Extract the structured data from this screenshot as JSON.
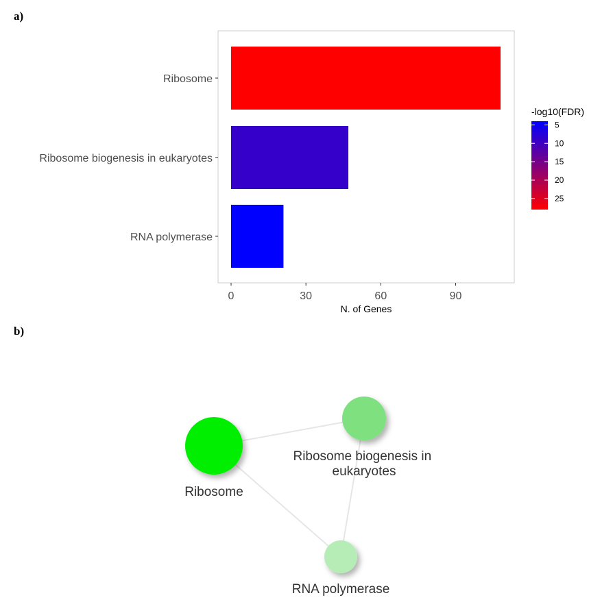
{
  "panels": {
    "a_label": "a)",
    "b_label": "b)"
  },
  "chart_data": [
    {
      "type": "bar",
      "orientation": "horizontal",
      "categories": [
        "Ribosome",
        "Ribosome biogenesis in eukaryotes",
        "RNA polymerase"
      ],
      "values": [
        108,
        47,
        21
      ],
      "color_values": [
        28,
        9,
        4
      ],
      "xlabel": "N. of Genes",
      "ylabel": "",
      "xlim": [
        0,
        108
      ],
      "xticks": [
        0,
        30,
        60,
        90
      ],
      "grid": false,
      "legend": {
        "title": "-log10(FDR)",
        "placement": "right",
        "ticks": [
          5,
          10,
          15,
          20,
          25
        ],
        "range": [
          4,
          28
        ],
        "color_low": "#0000ff",
        "color_high": "#ff0000"
      }
    },
    {
      "type": "network",
      "nodes": [
        {
          "label": "Ribosome",
          "color": "#00ee00",
          "size": "large"
        },
        {
          "label": "Ribosome biogenesis in eukaryotes",
          "color": "#7ee07e",
          "size": "medium"
        },
        {
          "label": "RNA polymerase",
          "color": "#b6ecb6",
          "size": "small"
        }
      ],
      "edges": [
        [
          0,
          1
        ],
        [
          0,
          2
        ],
        [
          1,
          2
        ]
      ]
    }
  ]
}
